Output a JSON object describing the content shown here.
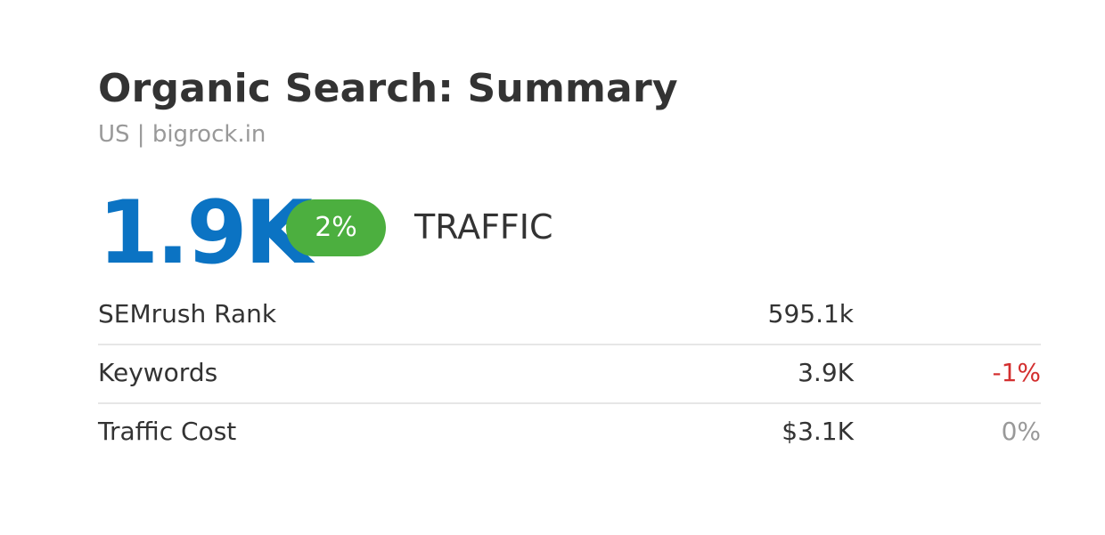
{
  "header": {
    "title": "Organic Search: Summary",
    "subtitle": "US | bigrock.in"
  },
  "traffic": {
    "value": "1.9K",
    "change": "2%",
    "label": "TRAFFIC"
  },
  "table": {
    "rows": [
      [
        "SEMrush Rank",
        "595.1k",
        null
      ],
      [
        "Keywords",
        "3.9K",
        "-1%"
      ],
      [
        "Traffic Cost",
        "$3.1K",
        "0%"
      ]
    ]
  }
}
